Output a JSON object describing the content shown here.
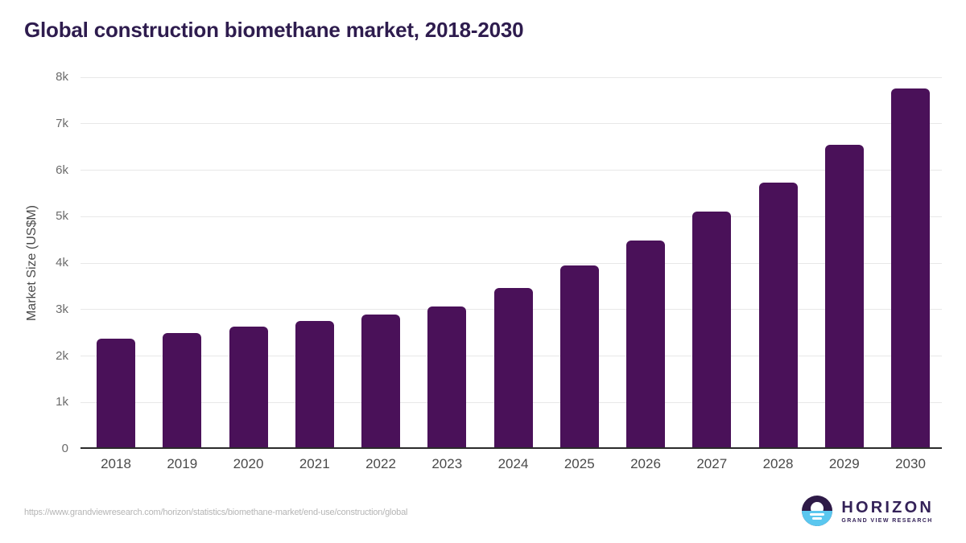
{
  "header": {
    "title": "Global construction biomethane market, 2018-2030"
  },
  "chart_data": {
    "type": "bar",
    "title": "Global construction biomethane market, 2018-2030",
    "categories": [
      "2018",
      "2019",
      "2020",
      "2021",
      "2022",
      "2023",
      "2024",
      "2025",
      "2026",
      "2027",
      "2028",
      "2029",
      "2030"
    ],
    "values": [
      2380,
      2500,
      2630,
      2760,
      2890,
      3070,
      3470,
      3950,
      4490,
      5100,
      5740,
      6540,
      7750
    ],
    "xlabel": "",
    "ylabel": "Market Size (US$M)",
    "ylim": [
      0,
      8000
    ],
    "ytick_labels": [
      "0",
      "1k",
      "2k",
      "3k",
      "4k",
      "5k",
      "6k",
      "7k",
      "8k"
    ],
    "grid": "horizontal",
    "legend": "none",
    "bar_color": "#4a1159"
  },
  "colors": {
    "title_text": "#2e1c4e",
    "bar": "#4a1159",
    "gridline": "#e8e8e8",
    "axis_line": "#2b2b2b",
    "tick_text": "#6b6b6b",
    "url_text": "#b5b5b5",
    "logo_purple": "#342258",
    "logo_blue": "#5ac7ef"
  },
  "footer": {
    "source_url": "https://www.grandviewresearch.com/horizon/statistics/biomethane-market/end-use/construction/global",
    "logo": {
      "name": "HORIZON",
      "subtitle": "GRAND VIEW RESEARCH"
    }
  }
}
